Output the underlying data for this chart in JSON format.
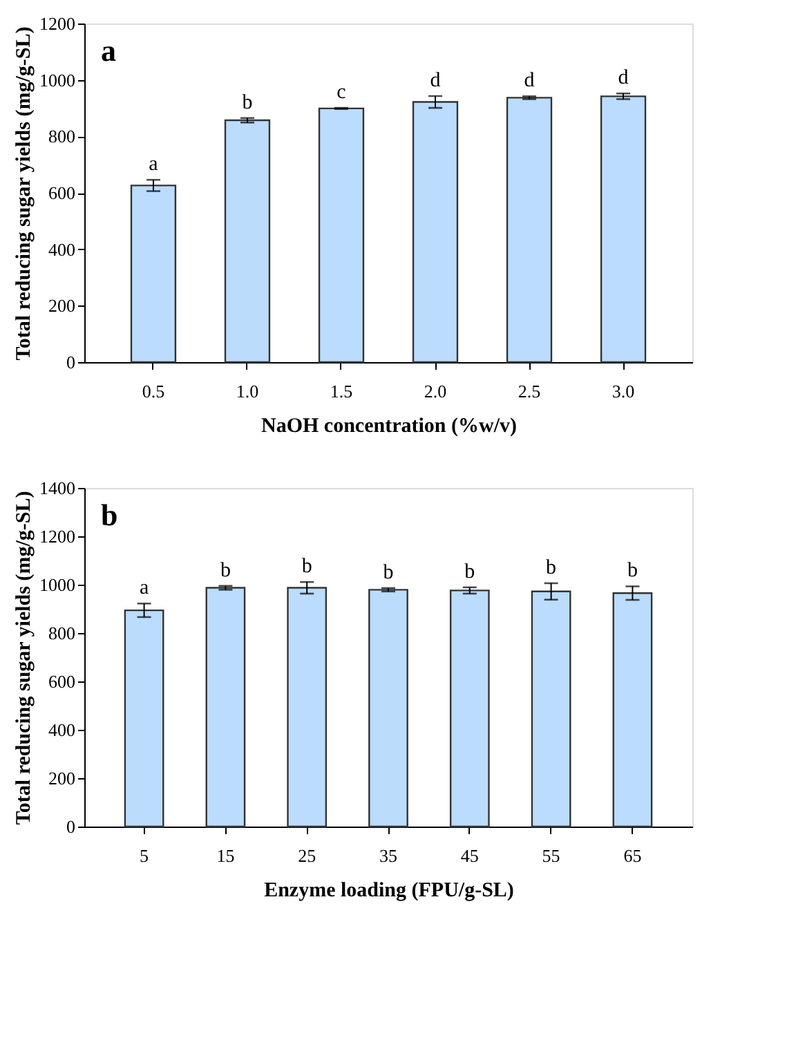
{
  "chart_data": [
    {
      "type": "bar",
      "title": "a",
      "xlabel": "NaOH concentration (%w/v)",
      "ylabel": "Total reducing sugar yields (mg/g-SL)",
      "categories": [
        "0.5",
        "1.0",
        "1.5",
        "2.0",
        "2.5",
        "3.0"
      ],
      "series": [
        {
          "color": "#bbdcfc",
          "values": [
            626,
            857,
            899,
            922,
            937,
            942
          ],
          "errors": [
            20,
            8,
            2,
            21,
            5,
            10
          ]
        }
      ],
      "ylim": [
        0,
        1200
      ],
      "yticks": [
        0,
        200,
        400,
        600,
        800,
        1000,
        1200
      ],
      "grid": false,
      "legend": false,
      "annotations": [
        {
          "text": "a",
          "x": "0.5",
          "y": 646
        },
        {
          "text": "b",
          "x": "1.0",
          "y": 865
        },
        {
          "text": "c",
          "x": "1.5",
          "y": 901
        },
        {
          "text": "d",
          "x": "2.0",
          "y": 943
        },
        {
          "text": "d",
          "x": "2.5",
          "y": 942
        },
        {
          "text": "d",
          "x": "3.0",
          "y": 952
        }
      ]
    },
    {
      "type": "bar",
      "title": "b",
      "xlabel": "Enzyme loading (FPU/g-SL)",
      "ylabel": "Total reducing sugar yields (mg/g-SL)",
      "categories": [
        "5",
        "15",
        "25",
        "35",
        "45",
        "55",
        "65"
      ],
      "series": [
        {
          "color": "#bbdcfc",
          "values": [
            894,
            987,
            987,
            979,
            976,
            972,
            965
          ],
          "errors": [
            28,
            8,
            24,
            7,
            13,
            34,
            28
          ]
        }
      ],
      "ylim": [
        0,
        1400
      ],
      "yticks": [
        0,
        200,
        400,
        600,
        800,
        1000,
        1200,
        1400
      ],
      "grid": false,
      "legend": false,
      "annotations": [
        {
          "text": "a",
          "x": "5",
          "y": 922
        },
        {
          "text": "b",
          "x": "15",
          "y": 995
        },
        {
          "text": "b",
          "x": "25",
          "y": 1011
        },
        {
          "text": "b",
          "x": "35",
          "y": 986
        },
        {
          "text": "b",
          "x": "45",
          "y": 989
        },
        {
          "text": "b",
          "x": "55",
          "y": 1006
        },
        {
          "text": "b",
          "x": "65",
          "y": 993
        }
      ]
    }
  ]
}
